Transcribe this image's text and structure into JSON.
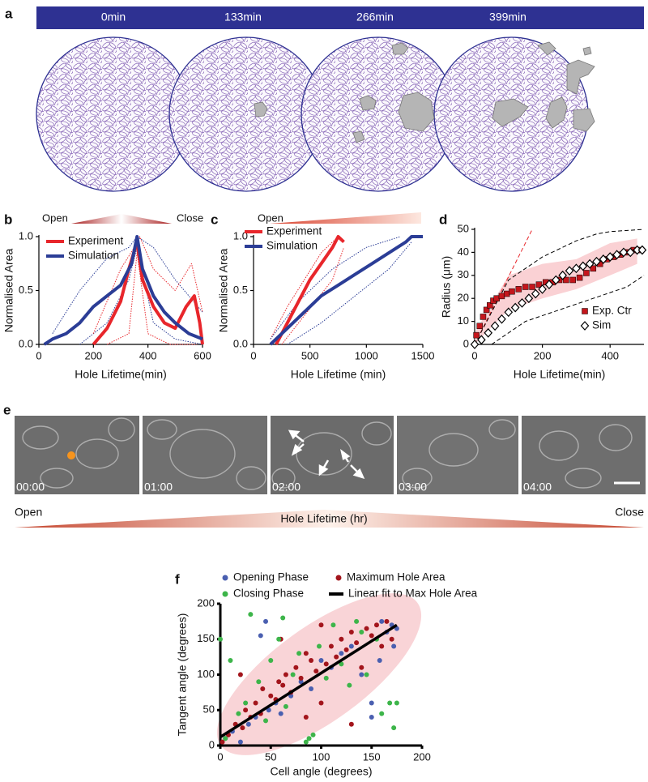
{
  "panel_a": {
    "panel": "a",
    "times": [
      "0min",
      "133min",
      "266min",
      "399min"
    ]
  },
  "panel_e": {
    "panel": "e",
    "timestamps": [
      "00:00",
      "01:00",
      "02:00",
      "03:00",
      "04:00"
    ],
    "open_label": "Open",
    "close_label": "Close",
    "axis_label": "Hole Lifetime (hr)"
  },
  "chart_data": [
    {
      "type": "line",
      "panel": "b",
      "open_label": "Open",
      "close_label": "Close",
      "xlabel": "Hole Lifetime(min)",
      "ylabel": "Normalised Area",
      "xlim": [
        0,
        600
      ],
      "xticks": [
        0,
        200,
        400,
        600
      ],
      "ylim": [
        0,
        1
      ],
      "yticks": [
        {
          "value": 0,
          "label": "0.0"
        },
        {
          "value": 0.5,
          "label": "0.5"
        },
        {
          "value": 1,
          "label": "1.0"
        }
      ],
      "legend": "upper left",
      "series": [
        {
          "name": "Experiment",
          "color": "#e8262b",
          "x": [
            200,
            250,
            300,
            330,
            360,
            380,
            420,
            460,
            500,
            540,
            570,
            590,
            600
          ],
          "values": [
            0,
            0.15,
            0.4,
            0.7,
            0.95,
            0.6,
            0.35,
            0.2,
            0.15,
            0.35,
            0.45,
            0.2,
            0
          ]
        },
        {
          "name": "Simulation",
          "color": "#2b3d96",
          "x": [
            20,
            50,
            100,
            150,
            200,
            250,
            300,
            340,
            360,
            380,
            420,
            460,
            500,
            550,
            600
          ],
          "values": [
            0,
            0.05,
            0.1,
            0.2,
            0.35,
            0.45,
            0.55,
            0.75,
            1.0,
            0.7,
            0.45,
            0.3,
            0.2,
            0.1,
            0.05
          ]
        },
        {
          "color": "#2b3d96",
          "style": "dotted",
          "x": [
            50,
            150,
            250,
            330,
            360,
            420,
            500,
            600
          ],
          "values": [
            0.1,
            0.5,
            0.8,
            0.9,
            1.0,
            0.9,
            0.6,
            0.3
          ]
        },
        {
          "color": "#2b3d96",
          "style": "dotted",
          "x": [
            150,
            250,
            330,
            360,
            420,
            500,
            600
          ],
          "values": [
            0,
            0.2,
            0.6,
            0.9,
            0.2,
            0.05,
            0
          ]
        },
        {
          "color": "#e8262b",
          "style": "dotted",
          "x": [
            200,
            300,
            350,
            370,
            420,
            500,
            560,
            600
          ],
          "values": [
            0.1,
            0.7,
            0.9,
            1.0,
            0.7,
            0.5,
            0.75,
            0.3
          ]
        },
        {
          "color": "#e8262b",
          "style": "dotted",
          "x": [
            250,
            330,
            360,
            400,
            480,
            580
          ],
          "values": [
            0,
            0.1,
            0.85,
            0.1,
            0,
            0
          ]
        }
      ]
    },
    {
      "type": "line",
      "panel": "c",
      "open_label": "Open",
      "xlabel": "Hole Lifetime (min)",
      "ylabel": "Normalised Area",
      "xlim": [
        0,
        1500
      ],
      "xticks": [
        0,
        500,
        1000,
        1500
      ],
      "ylim": [
        0,
        1
      ],
      "yticks": [
        {
          "value": 0,
          "label": "0.0"
        },
        {
          "value": 0.5,
          "label": "0.5"
        },
        {
          "value": 1,
          "label": "1.0"
        }
      ],
      "legend": "upper left",
      "series": [
        {
          "name": "Experiment",
          "color": "#e8262b",
          "x": [
            200,
            300,
            400,
            500,
            600,
            700,
            750,
            800
          ],
          "values": [
            0,
            0.2,
            0.4,
            0.6,
            0.75,
            0.9,
            1.0,
            0.95
          ]
        },
        {
          "name": "Simulation",
          "color": "#2b3d96",
          "x": [
            150,
            300,
            450,
            600,
            750,
            900,
            1050,
            1200,
            1350,
            1400,
            1500
          ],
          "values": [
            0,
            0.15,
            0.3,
            0.45,
            0.55,
            0.65,
            0.75,
            0.85,
            0.95,
            1.0,
            1.0
          ]
        },
        {
          "color": "#e8262b",
          "style": "dotted",
          "x": [
            150,
            300,
            450,
            600,
            750
          ],
          "values": [
            0.05,
            0.35,
            0.6,
            0.85,
            1.0
          ]
        },
        {
          "color": "#e8262b",
          "style": "dotted",
          "x": [
            250,
            400,
            550,
            700,
            800
          ],
          "values": [
            0,
            0.2,
            0.4,
            0.6,
            0.9
          ]
        },
        {
          "color": "#2b3d96",
          "style": "dotted",
          "x": [
            150,
            400,
            700,
            1000,
            1300
          ],
          "values": [
            0.05,
            0.4,
            0.7,
            0.9,
            1.0
          ]
        },
        {
          "color": "#2b3d96",
          "style": "dotted",
          "x": [
            300,
            600,
            900,
            1200,
            1400
          ],
          "values": [
            0,
            0.2,
            0.45,
            0.7,
            0.95
          ]
        }
      ]
    },
    {
      "type": "line",
      "panel": "d",
      "xlabel": "Hole Lifetime(min)",
      "ylabel": "Radius (μm)",
      "xlim": [
        0,
        500
      ],
      "xticks": [
        0,
        200,
        400
      ],
      "ylim": [
        0,
        50
      ],
      "yticks": [
        0,
        10,
        20,
        30,
        40,
        50
      ],
      "legend": "lower right",
      "band": {
        "color": "#f9c9cc",
        "x": [
          0,
          100,
          200,
          300,
          400,
          480
        ],
        "lower": [
          0,
          15,
          20,
          24,
          30,
          35
        ],
        "upper": [
          5,
          30,
          35,
          37,
          44,
          46
        ]
      },
      "series": [
        {
          "color": "#e8262b",
          "style": "dashed",
          "x": [
            0,
            170
          ],
          "values": [
            0,
            50
          ]
        },
        {
          "color": "#000000",
          "style": "dashed",
          "x": [
            0,
            100,
            200,
            300,
            360,
            400,
            500
          ],
          "values": [
            0,
            28,
            38,
            45,
            48,
            49,
            50
          ]
        },
        {
          "color": "#000000",
          "style": "dashed",
          "x": [
            50,
            150,
            250,
            350,
            450,
            500
          ],
          "values": [
            0,
            10,
            15,
            20,
            25,
            30
          ]
        },
        {
          "name": "Exp. Ctr",
          "color": "#c4161c",
          "marker": "square",
          "x": [
            5,
            15,
            25,
            35,
            45,
            55,
            65,
            80,
            95,
            110,
            130,
            150,
            170,
            190,
            210,
            230,
            250,
            270,
            290,
            310,
            330,
            350,
            370,
            390,
            410,
            430,
            450,
            470,
            490
          ],
          "values": [
            4,
            8,
            12,
            15,
            17,
            19,
            20,
            21,
            22,
            23,
            24,
            25,
            25,
            26,
            27,
            27,
            28,
            28,
            28,
            29,
            31,
            33,
            35,
            37,
            38,
            39,
            40,
            41,
            41
          ]
        },
        {
          "name": "Sim",
          "color": "#000000",
          "marker": "diamond",
          "x": [
            0,
            20,
            40,
            60,
            80,
            100,
            120,
            140,
            160,
            180,
            200,
            220,
            240,
            260,
            280,
            300,
            320,
            340,
            360,
            380,
            400,
            420,
            440,
            460,
            480,
            495
          ],
          "values": [
            0,
            2,
            5,
            8,
            11,
            14,
            16,
            18,
            20,
            22,
            24,
            26,
            28,
            30,
            32,
            33,
            34,
            35,
            36,
            37,
            38,
            39,
            40,
            40,
            41,
            41
          ]
        }
      ]
    },
    {
      "type": "scatter",
      "panel": "f",
      "xlabel": "Cell angle (degrees)",
      "ylabel": "Tangent angle (degrees)",
      "xlim": [
        0,
        200
      ],
      "xticks": [
        0,
        50,
        100,
        150,
        200
      ],
      "ylim": [
        0,
        200
      ],
      "yticks": [
        0,
        50,
        100,
        150,
        200
      ],
      "legend": "top",
      "series": [
        {
          "name": "Opening Phase",
          "color": "#4a5fb0",
          "x": [
            5,
            12,
            20,
            28,
            35,
            40,
            48,
            55,
            60,
            70,
            80,
            90,
            100,
            110,
            120,
            130,
            140,
            150,
            158,
            160,
            165,
            170,
            172,
            175,
            45,
            150
          ],
          "values": [
            10,
            20,
            5,
            30,
            40,
            155,
            50,
            60,
            45,
            70,
            90,
            80,
            120,
            110,
            130,
            140,
            100,
            60,
            120,
            175,
            160,
            170,
            140,
            165,
            175,
            40
          ]
        },
        {
          "name": "Maximum Hole Area",
          "color": "#a3151c",
          "x": [
            2,
            8,
            15,
            22,
            25,
            30,
            35,
            40,
            42,
            50,
            55,
            58,
            62,
            65,
            70,
            75,
            80,
            85,
            90,
            95,
            100,
            105,
            110,
            115,
            120,
            125,
            130,
            135,
            140,
            145,
            150,
            155,
            160,
            165,
            170,
            60,
            100,
            130,
            20,
            85
          ],
          "values": [
            5,
            15,
            30,
            25,
            50,
            40,
            60,
            45,
            80,
            70,
            65,
            90,
            85,
            100,
            75,
            110,
            95,
            130,
            120,
            105,
            170,
            115,
            140,
            125,
            150,
            135,
            160,
            145,
            110,
            165,
            155,
            170,
            140,
            175,
            150,
            150,
            60,
            30,
            100,
            40
          ]
        },
        {
          "name": "Closing Phase",
          "color": "#3db54a",
          "x": [
            0,
            5,
            10,
            18,
            25,
            30,
            38,
            45,
            50,
            58,
            65,
            72,
            78,
            85,
            92,
            98,
            105,
            112,
            120,
            128,
            135,
            145,
            155,
            160,
            168,
            172,
            175,
            62,
            88,
            140
          ],
          "values": [
            150,
            10,
            120,
            45,
            60,
            185,
            90,
            35,
            120,
            150,
            55,
            100,
            130,
            5,
            15,
            140,
            95,
            170,
            115,
            85,
            175,
            100,
            150,
            45,
            60,
            25,
            60,
            180,
            10,
            160
          ]
        },
        {
          "name": "Linear fit to Max Hole Area",
          "color": "#000000",
          "type": "line",
          "x": [
            0,
            175
          ],
          "values": [
            12,
            170
          ]
        }
      ]
    }
  ]
}
